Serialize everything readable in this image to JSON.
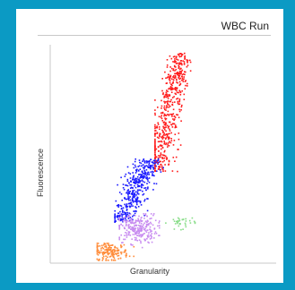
{
  "chart_data": {
    "type": "scatter",
    "title": "WBC Run",
    "xlabel": "Granularity",
    "ylabel": "Fluorescence",
    "xlim": [
      0,
      100
    ],
    "ylim": [
      0,
      100
    ],
    "grid": false,
    "legend": "none",
    "series": [
      {
        "color": "#ff1a1a",
        "x_range": [
          46,
          62
        ],
        "y_range": [
          42,
          98
        ],
        "center": [
          54,
          70
        ],
        "spread": [
          3.5,
          14
        ],
        "count": 520
      },
      {
        "color": "#1a1aff",
        "x_range": [
          28,
          50
        ],
        "y_range": [
          18,
          48
        ],
        "center": [
          40,
          34
        ],
        "spread": [
          5,
          7
        ],
        "count": 420
      },
      {
        "color": "#c88cf0",
        "x_range": [
          30,
          48
        ],
        "y_range": [
          6,
          22
        ],
        "center": [
          38,
          15
        ],
        "spread": [
          4.5,
          3.5
        ],
        "count": 260
      },
      {
        "color": "#ff8c3a",
        "x_range": [
          20,
          38
        ],
        "y_range": [
          0,
          8
        ],
        "center": [
          26,
          4
        ],
        "spread": [
          4,
          2
        ],
        "count": 170
      },
      {
        "color": "#88dd88",
        "x_range": [
          50,
          64
        ],
        "y_range": [
          14,
          22
        ],
        "center": [
          58,
          18
        ],
        "spread": [
          3,
          1.5
        ],
        "count": 35
      }
    ]
  }
}
